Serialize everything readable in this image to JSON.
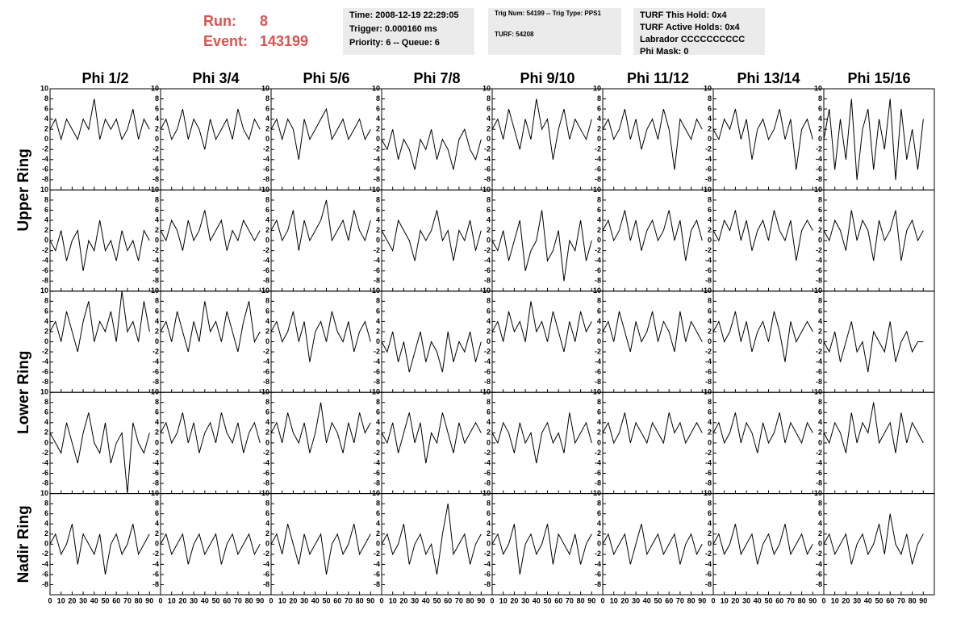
{
  "header": {
    "run_label": "Run:",
    "run": 8,
    "event_label": "Event:",
    "event": 143199,
    "info_boxes": [
      [
        "Time: 2008-12-19 22:29:05",
        "Trigger: 0.000160 ms",
        "Priority: 6 -- Queue: 6"
      ],
      [
        "Trig Num: 54199 -- Trig Type: PPS1",
        "TURF: 54208"
      ],
      [
        "TURF This Hold: 0x4",
        "TURF Active Holds: 0x4",
        "Labrador CCCCCCCCCC",
        "Phi Mask: 0"
      ]
    ]
  },
  "panels": {
    "columns": [
      "Phi 1/2",
      "Phi 3/4",
      "Phi 5/6",
      "Phi 7/8",
      "Phi 9/10",
      "Phi 11/12",
      "Phi 13/14",
      "Phi 15/16"
    ],
    "row_labels": [
      "Upper Ring",
      "Lower Ring",
      "Nadir Ring"
    ],
    "xlim": [
      0,
      100
    ],
    "ylim": [
      -10,
      10
    ],
    "xticks": [
      0,
      10,
      20,
      30,
      40,
      50,
      60,
      70,
      80,
      90
    ],
    "yticks": [
      -8,
      -6,
      -4,
      -2,
      0,
      2,
      4,
      6,
      8,
      10
    ],
    "x": [
      0,
      5,
      10,
      15,
      20,
      25,
      30,
      35,
      40,
      45,
      50,
      55,
      60,
      65,
      70,
      75,
      80,
      85,
      90
    ],
    "traces": [
      [
        [
          2,
          4,
          0,
          4,
          2,
          0,
          4,
          2,
          8,
          0,
          4,
          2,
          4,
          0,
          2,
          6,
          0,
          4,
          2
        ],
        [
          2,
          4,
          0,
          2,
          6,
          0,
          4,
          2,
          -2,
          4,
          0,
          2,
          4,
          0,
          6,
          2,
          0,
          4,
          2
        ],
        [
          2,
          4,
          0,
          4,
          2,
          -4,
          4,
          0,
          2,
          4,
          6,
          0,
          2,
          4,
          0,
          2,
          4,
          0,
          2
        ],
        [
          0,
          -2,
          2,
          -4,
          0,
          -2,
          -6,
          0,
          -2,
          2,
          -4,
          0,
          -2,
          -6,
          0,
          2,
          -2,
          -4,
          0
        ],
        [
          2,
          4,
          0,
          6,
          2,
          -2,
          4,
          0,
          8,
          2,
          4,
          -4,
          2,
          6,
          0,
          4,
          2,
          0,
          4
        ],
        [
          2,
          4,
          0,
          2,
          6,
          0,
          4,
          -2,
          2,
          4,
          0,
          6,
          2,
          -6,
          4,
          2,
          0,
          4,
          2
        ],
        [
          2,
          0,
          4,
          2,
          6,
          0,
          4,
          -4,
          2,
          4,
          0,
          2,
          6,
          0,
          4,
          -6,
          2,
          4,
          0
        ],
        [
          0,
          6,
          -6,
          4,
          -4,
          8,
          -8,
          2,
          6,
          -6,
          4,
          -2,
          8,
          -8,
          6,
          -4,
          2,
          -6,
          4
        ]
      ],
      [
        [
          0,
          -2,
          2,
          -4,
          0,
          2,
          -6,
          0,
          -2,
          4,
          -2,
          0,
          -4,
          2,
          -2,
          0,
          -4,
          2,
          0
        ],
        [
          2,
          0,
          4,
          2,
          -2,
          4,
          0,
          2,
          6,
          0,
          2,
          4,
          -2,
          2,
          0,
          4,
          2,
          0,
          2
        ],
        [
          2,
          4,
          0,
          2,
          6,
          -2,
          4,
          0,
          2,
          4,
          8,
          0,
          2,
          4,
          0,
          6,
          2,
          0,
          4
        ],
        [
          2,
          0,
          -2,
          4,
          2,
          0,
          -4,
          2,
          0,
          2,
          6,
          0,
          2,
          -4,
          2,
          0,
          4,
          -2,
          2
        ],
        [
          0,
          -2,
          2,
          -4,
          0,
          4,
          -6,
          -2,
          0,
          6,
          -4,
          -2,
          2,
          -8,
          0,
          -2,
          4,
          -4,
          0
        ],
        [
          2,
          4,
          0,
          2,
          6,
          0,
          4,
          -2,
          2,
          4,
          0,
          2,
          6,
          0,
          4,
          -4,
          2,
          4,
          0
        ],
        [
          2,
          0,
          4,
          2,
          6,
          0,
          4,
          -2,
          2,
          4,
          0,
          6,
          2,
          0,
          4,
          -4,
          2,
          4,
          2
        ],
        [
          2,
          0,
          4,
          2,
          -2,
          6,
          0,
          4,
          2,
          -4,
          4,
          0,
          2,
          6,
          -4,
          2,
          4,
          0,
          2
        ]
      ],
      [
        [
          2,
          4,
          0,
          6,
          2,
          -2,
          4,
          8,
          0,
          4,
          2,
          6,
          0,
          10,
          2,
          4,
          0,
          8,
          2
        ],
        [
          2,
          4,
          0,
          6,
          2,
          -2,
          4,
          0,
          8,
          2,
          4,
          0,
          6,
          2,
          -2,
          4,
          8,
          0,
          2
        ],
        [
          2,
          4,
          0,
          2,
          6,
          0,
          4,
          -4,
          2,
          4,
          0,
          6,
          2,
          0,
          4,
          -2,
          2,
          4,
          0
        ],
        [
          0,
          -2,
          2,
          -4,
          0,
          -6,
          -2,
          2,
          -4,
          0,
          -2,
          -6,
          2,
          -4,
          0,
          -2,
          2,
          -4,
          0
        ],
        [
          2,
          4,
          0,
          6,
          2,
          4,
          0,
          8,
          2,
          4,
          0,
          6,
          2,
          -2,
          4,
          0,
          6,
          2,
          4
        ],
        [
          2,
          4,
          0,
          6,
          2,
          -2,
          4,
          0,
          2,
          6,
          0,
          4,
          2,
          -2,
          6,
          0,
          4,
          2,
          0
        ],
        [
          2,
          4,
          0,
          2,
          6,
          0,
          4,
          -2,
          2,
          4,
          0,
          6,
          2,
          -4,
          4,
          0,
          2,
          4,
          2
        ],
        [
          0,
          -2,
          2,
          -4,
          0,
          4,
          -2,
          0,
          -6,
          2,
          0,
          -2,
          4,
          -4,
          0,
          2,
          -2,
          0,
          0
        ]
      ],
      [
        [
          2,
          0,
          -2,
          4,
          0,
          -4,
          2,
          6,
          0,
          -2,
          4,
          -4,
          0,
          2,
          -10,
          4,
          0,
          -2,
          2
        ],
        [
          2,
          4,
          0,
          2,
          6,
          0,
          4,
          -2,
          2,
          4,
          0,
          6,
          2,
          0,
          4,
          -2,
          2,
          4,
          0
        ],
        [
          2,
          4,
          0,
          6,
          2,
          0,
          4,
          -2,
          2,
          8,
          0,
          4,
          2,
          -2,
          4,
          0,
          6,
          2,
          4
        ],
        [
          2,
          0,
          4,
          -2,
          2,
          6,
          0,
          4,
          -4,
          2,
          0,
          6,
          2,
          -2,
          4,
          0,
          2,
          4,
          2
        ],
        [
          2,
          0,
          4,
          2,
          -2,
          4,
          0,
          2,
          -4,
          2,
          4,
          0,
          2,
          -2,
          6,
          0,
          2,
          4,
          0
        ],
        [
          2,
          4,
          0,
          2,
          6,
          0,
          4,
          2,
          0,
          4,
          2,
          0,
          6,
          2,
          4,
          0,
          2,
          4,
          2
        ],
        [
          2,
          4,
          0,
          2,
          6,
          0,
          4,
          2,
          -2,
          4,
          0,
          2,
          6,
          0,
          4,
          2,
          0,
          4,
          2
        ],
        [
          2,
          0,
          4,
          2,
          -2,
          6,
          0,
          4,
          2,
          8,
          0,
          2,
          4,
          -2,
          6,
          0,
          4,
          2,
          0
        ]
      ],
      [
        [
          0,
          2,
          -2,
          0,
          4,
          -4,
          2,
          0,
          -2,
          2,
          -6,
          0,
          2,
          -2,
          0,
          4,
          -2,
          0,
          2
        ],
        [
          0,
          2,
          -2,
          0,
          2,
          -4,
          0,
          2,
          -2,
          0,
          2,
          -4,
          0,
          2,
          -2,
          0,
          2,
          -2,
          0
        ],
        [
          0,
          2,
          -2,
          4,
          0,
          -4,
          2,
          -2,
          0,
          2,
          -6,
          0,
          2,
          -2,
          0,
          4,
          -2,
          0,
          2
        ],
        [
          0,
          2,
          -2,
          0,
          4,
          -4,
          0,
          2,
          -2,
          0,
          -6,
          2,
          8,
          -2,
          0,
          2,
          -4,
          0,
          2
        ],
        [
          0,
          2,
          -2,
          0,
          4,
          -6,
          0,
          2,
          -2,
          0,
          4,
          -4,
          2,
          0,
          -2,
          2,
          -4,
          0,
          2
        ],
        [
          0,
          2,
          -2,
          0,
          2,
          -4,
          0,
          4,
          -2,
          0,
          2,
          -2,
          0,
          2,
          -4,
          0,
          2,
          -2,
          0
        ],
        [
          0,
          2,
          -2,
          0,
          4,
          -2,
          0,
          2,
          -4,
          0,
          2,
          -2,
          0,
          4,
          -2,
          0,
          2,
          -2,
          0
        ],
        [
          0,
          2,
          -2,
          0,
          2,
          -4,
          0,
          2,
          -2,
          0,
          4,
          -2,
          6,
          0,
          -2,
          2,
          -4,
          0,
          2
        ]
      ]
    ]
  }
}
